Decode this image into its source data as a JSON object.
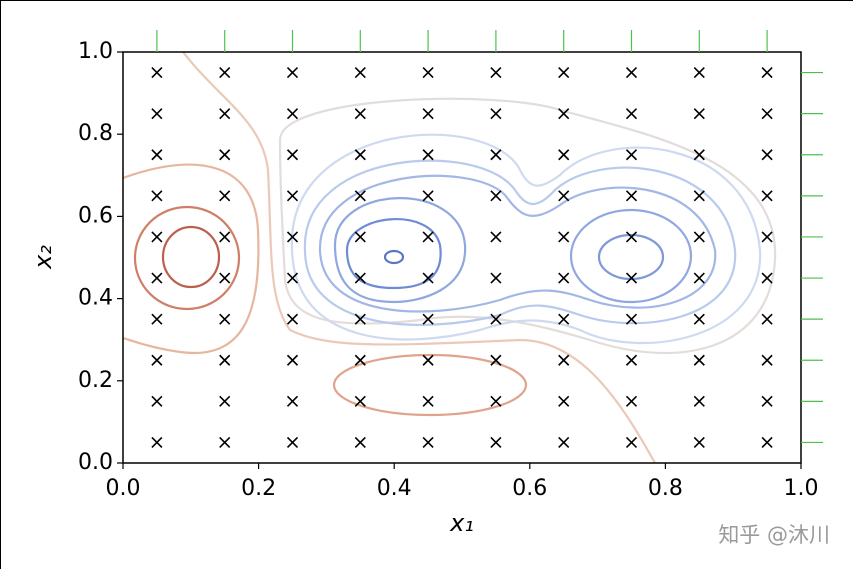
{
  "chart_data": {
    "type": "scatter",
    "xlabel": "x₁",
    "ylabel": "x₂",
    "watermark": "知乎 @沐川",
    "marker_color": "#000000",
    "rug_color": "#4cc24c",
    "xlim": [
      0,
      1
    ],
    "ylim": [
      0,
      1
    ],
    "xticks": [
      {
        "value": 0,
        "label": "0.0"
      },
      0.2,
      0.4,
      0.6,
      0.8,
      {
        "value": 1,
        "label": "1.0"
      }
    ],
    "yticks": [
      {
        "value": 0,
        "label": "0.0"
      },
      0.2,
      0.4,
      0.6,
      0.8,
      {
        "value": 1,
        "label": "1.0"
      }
    ],
    "x": [
      0.05,
      0.15,
      0.25,
      0.35,
      0.45,
      0.55,
      0.65,
      0.75,
      0.85,
      0.95,
      0.05,
      0.15,
      0.25,
      0.35,
      0.45,
      0.55,
      0.65,
      0.75,
      0.85,
      0.95,
      0.05,
      0.15,
      0.25,
      0.35,
      0.45,
      0.55,
      0.65,
      0.75,
      0.85,
      0.95,
      0.05,
      0.15,
      0.25,
      0.35,
      0.45,
      0.55,
      0.65,
      0.75,
      0.85,
      0.95,
      0.05,
      0.15,
      0.25,
      0.35,
      0.45,
      0.55,
      0.65,
      0.75,
      0.85,
      0.95,
      0.05,
      0.15,
      0.25,
      0.35,
      0.45,
      0.55,
      0.65,
      0.75,
      0.85,
      0.95,
      0.05,
      0.15,
      0.25,
      0.35,
      0.45,
      0.55,
      0.65,
      0.75,
      0.85,
      0.95,
      0.05,
      0.15,
      0.25,
      0.35,
      0.45,
      0.55,
      0.65,
      0.75,
      0.85,
      0.95,
      0.05,
      0.15,
      0.25,
      0.35,
      0.45,
      0.55,
      0.65,
      0.75,
      0.85,
      0.95,
      0.05,
      0.15,
      0.25,
      0.35,
      0.45,
      0.55,
      0.65,
      0.75,
      0.85,
      0.95
    ],
    "values": [
      0.05,
      0.05,
      0.05,
      0.05,
      0.05,
      0.05,
      0.05,
      0.05,
      0.05,
      0.05,
      0.15,
      0.15,
      0.15,
      0.15,
      0.15,
      0.15,
      0.15,
      0.15,
      0.15,
      0.15,
      0.25,
      0.25,
      0.25,
      0.25,
      0.25,
      0.25,
      0.25,
      0.25,
      0.25,
      0.25,
      0.35,
      0.35,
      0.35,
      0.35,
      0.35,
      0.35,
      0.35,
      0.35,
      0.35,
      0.35,
      0.45,
      0.45,
      0.45,
      0.45,
      0.45,
      0.45,
      0.45,
      0.45,
      0.45,
      0.45,
      0.55,
      0.55,
      0.55,
      0.55,
      0.55,
      0.55,
      0.55,
      0.55,
      0.55,
      0.55,
      0.65,
      0.65,
      0.65,
      0.65,
      0.65,
      0.65,
      0.65,
      0.65,
      0.65,
      0.65,
      0.75,
      0.75,
      0.75,
      0.75,
      0.75,
      0.75,
      0.75,
      0.75,
      0.75,
      0.75,
      0.85,
      0.85,
      0.85,
      0.85,
      0.85,
      0.85,
      0.85,
      0.85,
      0.85,
      0.85,
      0.95,
      0.95,
      0.95,
      0.95,
      0.95,
      0.95,
      0.95,
      0.95,
      0.95,
      0.95
    ]
  }
}
